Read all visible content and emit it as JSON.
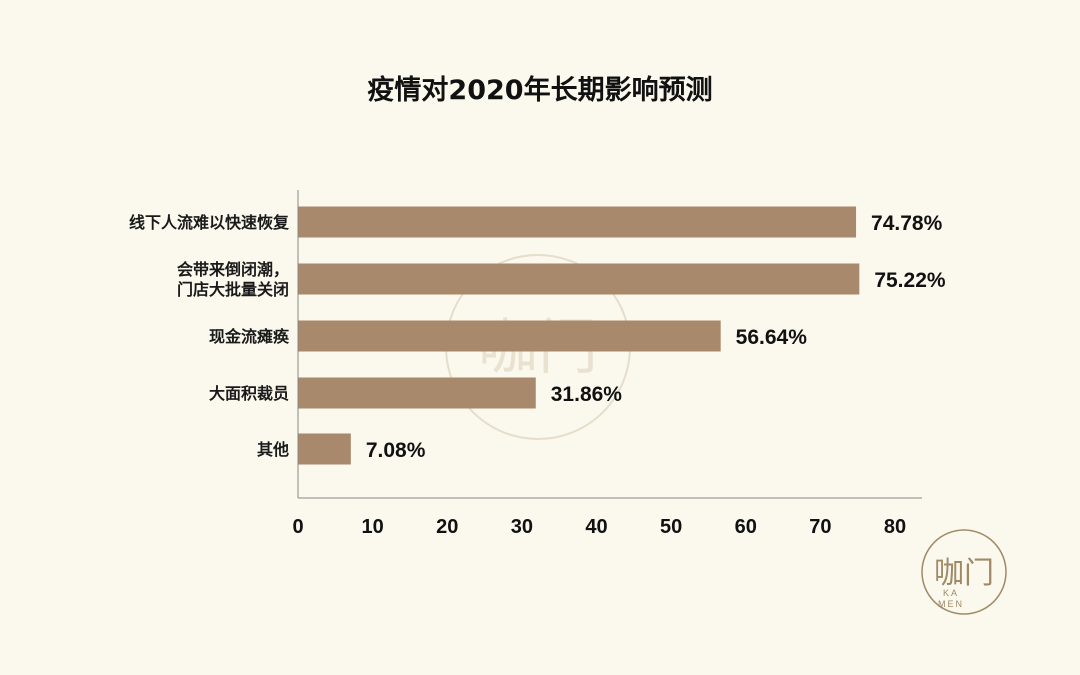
{
  "chart_data": {
    "type": "bar",
    "orientation": "horizontal",
    "title": "疫情对2020年长期影响预测",
    "categories": [
      [
        "线下人流难以快速恢复"
      ],
      [
        "会带来倒闭潮，",
        "门店大批量关闭"
      ],
      [
        "现金流瘫痪"
      ],
      [
        "大面积裁员"
      ],
      [
        "其他"
      ]
    ],
    "values": [
      74.78,
      75.22,
      56.64,
      31.86,
      7.08
    ],
    "value_labels": [
      "74.78%",
      "75.22%",
      "56.64%",
      "31.86%",
      "7.08%"
    ],
    "xlim": [
      0,
      80
    ],
    "xticks": [
      0,
      10,
      20,
      30,
      40,
      50,
      60,
      70,
      80
    ],
    "xlabel": "",
    "ylabel": "",
    "grid": false,
    "bar_color": "#a8896b"
  },
  "watermark": {
    "text": "咖门"
  },
  "logo": {
    "text_cn": "咖门",
    "text_en_line1": "KA",
    "text_en_line2": "MEN",
    "color": "#a08a66"
  }
}
